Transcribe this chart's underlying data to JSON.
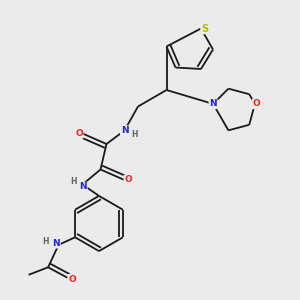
{
  "bg_color": "#ebebeb",
  "bond_color": "#1a1a1a",
  "atom_colors": {
    "N": "#2020ff",
    "O": "#ff2020",
    "S": "#b8b800",
    "C": "#1a1a1a",
    "H": "#606060"
  },
  "font_size": 6.5,
  "lw": 1.3
}
